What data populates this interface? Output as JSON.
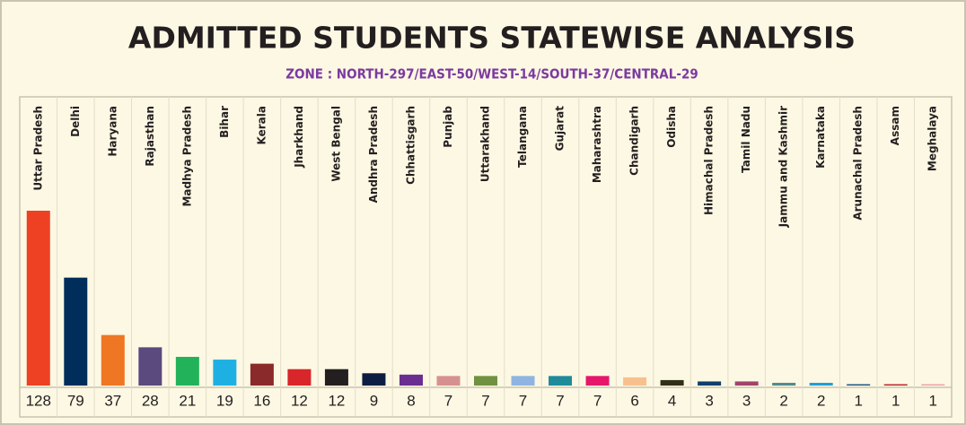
{
  "chart_data": {
    "type": "bar",
    "title": "ADMITTED STUDENTS STATEWISE ANALYSIS",
    "subtitle": "ZONE : NORTH-297/EAST-50/WEST-14/SOUTH-37/CENTRAL-29",
    "categories": [
      "Uttar Pradesh",
      "Delhi",
      "Haryana",
      "Rajasthan",
      "Madhya Pradesh",
      "Bihar",
      "Kerala",
      "Jharkhand",
      "West Bengal",
      "Andhra Pradesh",
      "Chhattisgarh",
      "Punjab",
      "Uttarakhand",
      "Telangana",
      "Gujarat",
      "Maharashtra",
      "Chandigarh",
      "Odisha",
      "Himachal Pradesh",
      "Tamil Nadu",
      "Jammu and Kashmir",
      "Karnataka",
      "Arunachal Pradesh",
      "Assam",
      "Meghalaya"
    ],
    "values": [
      128,
      79,
      37,
      28,
      21,
      19,
      16,
      12,
      12,
      9,
      8,
      7,
      7,
      7,
      7,
      7,
      6,
      4,
      3,
      3,
      2,
      2,
      1,
      1,
      1
    ],
    "colors": [
      "#ee4023",
      "#002d5a",
      "#ef7622",
      "#5a4a7e",
      "#22b25a",
      "#1fb0e3",
      "#8b2a2a",
      "#d8262a",
      "#231f20",
      "#0b1d43",
      "#6a2d91",
      "#d79090",
      "#6f9140",
      "#8fb4e1",
      "#1f8a9a",
      "#e6176b",
      "#f9c08f",
      "#303016",
      "#0f3e6e",
      "#a0446c",
      "#4e8a8f",
      "#1ba0d8",
      "#1e5a8a",
      "#c0282e",
      "#f0a0b0"
    ]
  }
}
